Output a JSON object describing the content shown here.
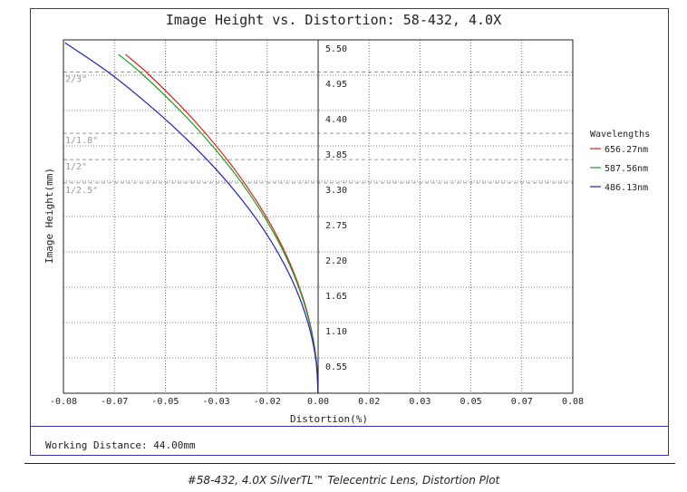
{
  "chart_data": {
    "type": "line",
    "title": "Image Height vs. Distortion: 58-432, 4.0X",
    "xlabel": "Distortion(%)",
    "ylabel": "Image Height(mm)",
    "xlim": [
      -0.08,
      0.08
    ],
    "ylim": [
      0,
      6.05
    ],
    "x_ticks": [
      "-0.08",
      "-0.07",
      "-0.05",
      "-0.03",
      "-0.02",
      "0.00",
      "0.02",
      "0.03",
      "0.05",
      "0.07",
      "0.08"
    ],
    "y_ticks": [
      "0.55",
      "1.10",
      "1.65",
      "2.20",
      "2.75",
      "3.30",
      "3.85",
      "4.40",
      "4.95",
      "5.50"
    ],
    "grid": true,
    "legend_title": "Wavelengths",
    "legend_position": "right",
    "sensor_lines": [
      {
        "label": "2/3\"",
        "y": 5.5
      },
      {
        "label": "1/1.8\"",
        "y": 4.45
      },
      {
        "label": "1/2\"",
        "y": 4.0
      },
      {
        "label": "1/2.5\"",
        "y": 3.6
      }
    ],
    "series": [
      {
        "name": "656.27nm",
        "color": "#dd2222",
        "x": [
          0,
          -0.00054,
          -0.00216,
          -0.00486,
          -0.00864,
          -0.0135,
          -0.01944,
          -0.02646,
          -0.03456,
          -0.04374,
          -0.054,
          -0.0605
        ],
        "y": [
          0,
          0.55,
          1.1,
          1.65,
          2.2,
          2.75,
          3.3,
          3.85,
          4.4,
          4.95,
          5.5,
          5.8
        ]
      },
      {
        "name": "587.56nm",
        "color": "#229922",
        "x": [
          0,
          -0.00056,
          -0.00224,
          -0.00504,
          -0.00896,
          -0.014,
          -0.02016,
          -0.02744,
          -0.03584,
          -0.04536,
          -0.056,
          -0.0627
        ],
        "y": [
          0,
          0.55,
          1.1,
          1.65,
          2.2,
          2.75,
          3.3,
          3.85,
          4.4,
          4.95,
          5.5,
          5.8
        ]
      },
      {
        "name": "486.13nm",
        "color": "#2222bb",
        "x": [
          0,
          -0.00066,
          -0.00264,
          -0.00594,
          -0.01056,
          -0.0165,
          -0.02376,
          -0.03234,
          -0.04224,
          -0.05346,
          -0.066,
          -0.0795
        ],
        "y": [
          0,
          0.55,
          1.1,
          1.65,
          2.2,
          2.75,
          3.3,
          3.85,
          4.4,
          4.95,
          5.5,
          6.0
        ]
      }
    ]
  },
  "footer": {
    "working_distance": "Working Distance: 44.00mm"
  },
  "caption": "#58-432, 4.0X SilverTL™ Telecentric Lens, Distortion Plot",
  "colors": {
    "frame": "#3333aa",
    "grid": "#555555",
    "sensor_line": "#999999"
  }
}
